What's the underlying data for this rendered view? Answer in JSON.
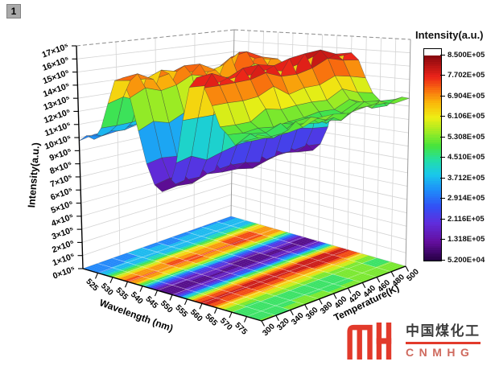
{
  "page": {
    "badge_label": "1"
  },
  "watermark": {
    "cn_text": "中国煤化工",
    "en_text": "CNMHG"
  },
  "chart_data": {
    "type": "surface3d",
    "title": "",
    "x_axis": {
      "label": "Wavelength (nm)",
      "min": 520,
      "max": 580,
      "ticks": [
        525,
        530,
        535,
        540,
        545,
        550,
        555,
        560,
        565,
        570,
        575
      ]
    },
    "y_axis": {
      "label": "Temperature(K)",
      "min": 300,
      "max": 500,
      "ticks": [
        300,
        320,
        340,
        360,
        380,
        400,
        420,
        440,
        460,
        480,
        500
      ]
    },
    "z_axis": {
      "label": "Intensity(a.u.)",
      "min": 0,
      "max": 1700000,
      "unit_scale": 100000,
      "tick_values": [
        0,
        1,
        2,
        3,
        4,
        5,
        6,
        7,
        8,
        9,
        10,
        11,
        12,
        13,
        14,
        15,
        16,
        17
      ],
      "tick_suffix": "×10⁵"
    },
    "surface": {
      "wavelengths_nm": [
        520,
        522.5,
        525,
        527.5,
        530,
        532.5,
        535,
        537.5,
        540,
        542.5,
        545,
        547.5,
        550,
        552.5,
        555,
        557.5,
        560,
        562.5,
        565,
        567.5,
        570,
        572.5,
        575,
        577.5,
        580
      ],
      "temperatures_K": [
        300,
        320,
        340,
        360,
        380,
        400,
        420,
        440,
        460,
        480,
        500
      ],
      "base_spectrum_1e5": [
        10.0,
        10.1,
        10.3,
        11.0,
        13.2,
        14.7,
        14.8,
        13.9,
        11.6,
        9.2,
        7.8,
        7.4,
        7.9,
        9.6,
        12.6,
        15.0,
        15.8,
        15.2,
        13.9,
        12.8,
        12.1,
        11.9,
        12.0,
        12.2,
        12.4
      ],
      "temperature_scale": [
        1.0,
        1.01,
        0.99,
        1.02,
        1.03,
        1.01,
        1.0,
        1.02,
        1.04,
        1.02,
        1.01
      ],
      "noise_amplitude": 0.025,
      "color_range_1e5": [
        6.8,
        16.5
      ]
    },
    "colorbar": {
      "title": "Intensity(a.u.)",
      "tick_labels": [
        "8.500E+05",
        "7.702E+05",
        "6.904E+05",
        "6.106E+05",
        "5.308E+05",
        "4.510E+05",
        "3.712E+05",
        "2.914E+05",
        "2.116E+05",
        "1.318E+05",
        "5.200E+04"
      ]
    },
    "colormap_stops": [
      [
        0.0,
        40,
        0,
        70
      ],
      [
        0.09,
        100,
        15,
        160
      ],
      [
        0.18,
        95,
        45,
        220
      ],
      [
        0.26,
        50,
        80,
        245
      ],
      [
        0.34,
        30,
        140,
        250
      ],
      [
        0.42,
        25,
        200,
        235
      ],
      [
        0.49,
        35,
        222,
        165
      ],
      [
        0.56,
        70,
        228,
        60
      ],
      [
        0.63,
        160,
        235,
        35
      ],
      [
        0.7,
        238,
        238,
        20
      ],
      [
        0.77,
        250,
        185,
        10
      ],
      [
        0.84,
        248,
        105,
        15
      ],
      [
        0.9,
        235,
        35,
        25
      ],
      [
        1.0,
        138,
        8,
        15
      ]
    ]
  }
}
